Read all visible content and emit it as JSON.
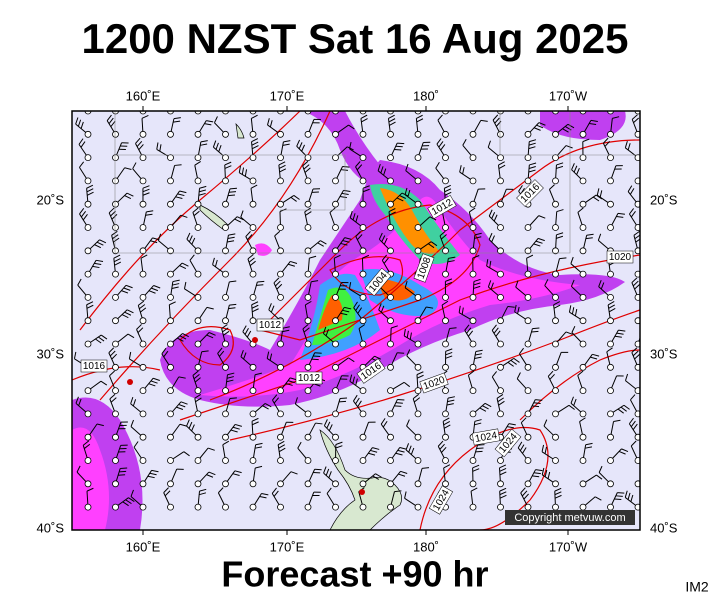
{
  "header": {
    "title": "1200 NZST Sat 16 Aug 2025"
  },
  "map": {
    "top_labels": [
      "160˚E",
      "170˚E",
      "180˚",
      "170˚W"
    ],
    "bottom_labels": [
      "160˚E",
      "170˚E",
      "180˚",
      "170˚W"
    ],
    "left_labels": [
      "20˚S",
      "30˚S",
      "40˚S"
    ],
    "right_labels": [
      "20˚S",
      "30˚S",
      "40˚S"
    ],
    "isobar_labels": [
      "1012",
      "1016",
      "1020",
      "1008",
      "1004",
      "1012",
      "1016",
      "1012",
      "1016",
      "1020",
      "1024",
      "1024",
      "1024"
    ],
    "copyright": "Copyright metvuw.com"
  },
  "footer": {
    "forecast": "Forecast +90 hr",
    "code": "IM2"
  }
}
